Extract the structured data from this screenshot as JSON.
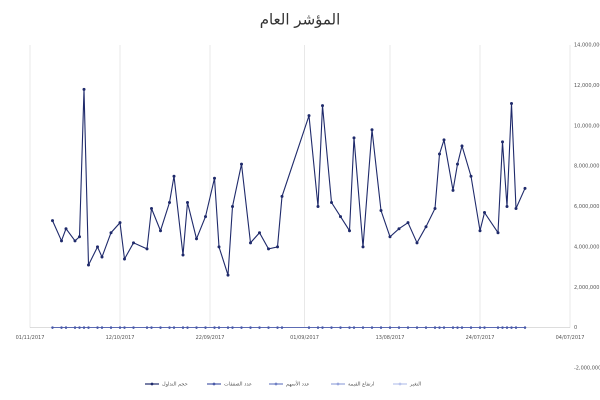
{
  "chart_data": {
    "type": "line",
    "title": "المؤشر العام",
    "x": [
      "2017-10-27",
      "2017-10-25",
      "2017-10-24",
      "2017-10-22",
      "2017-10-21",
      "2017-10-20",
      "2017-10-19",
      "2017-10-17",
      "2017-10-16",
      "2017-10-14",
      "2017-10-12",
      "2017-10-11",
      "2017-10-09",
      "2017-10-06",
      "2017-10-05",
      "2017-10-03",
      "2017-10-01",
      "2017-09-30",
      "2017-09-28",
      "2017-09-27",
      "2017-09-25",
      "2017-09-23",
      "2017-09-21",
      "2017-09-20",
      "2017-09-18",
      "2017-09-17",
      "2017-09-15",
      "2017-09-13",
      "2017-09-11",
      "2017-09-09",
      "2017-09-07",
      "2017-09-06",
      "2017-08-31",
      "2017-08-29",
      "2017-08-28",
      "2017-08-26",
      "2017-08-24",
      "2017-08-22",
      "2017-08-21",
      "2017-08-19",
      "2017-08-17",
      "2017-08-15",
      "2017-08-13",
      "2017-08-11",
      "2017-08-09",
      "2017-08-07",
      "2017-08-05",
      "2017-08-03",
      "2017-08-02",
      "2017-08-01",
      "2017-07-30",
      "2017-07-29",
      "2017-07-28",
      "2017-07-26",
      "2017-07-24",
      "2017-07-23",
      "2017-07-20",
      "2017-07-19",
      "2017-07-18",
      "2017-07-17",
      "2017-07-16",
      "2017-07-14"
    ],
    "series": [
      {
        "name": "حجم التداول",
        "color": "#1f2a6b",
        "values": [
          5300000,
          4300000,
          4900000,
          4300000,
          4500000,
          11800000,
          3100000,
          4000000,
          3500000,
          4700000,
          5200000,
          3400000,
          4200000,
          3900000,
          5900000,
          4800000,
          6200000,
          7500000,
          3600000,
          6200000,
          4400000,
          5500000,
          7400000,
          4000000,
          2600000,
          6000000,
          8100000,
          4200000,
          4700000,
          3900000,
          4000000,
          6500000,
          10500000,
          6000000,
          11000000,
          6200000,
          5500000,
          4800000,
          9400000,
          4000000,
          9800000,
          5800000,
          4500000,
          4900000,
          5200000,
          4200000,
          5000000,
          5900000,
          8600000,
          9300000,
          6800000,
          8100000,
          9000000,
          7500000,
          4800000,
          5700000,
          4700000,
          9200000,
          6000000,
          11100000,
          5900000,
          6900000
        ]
      },
      {
        "name": "عدد الصفقات",
        "color": "#4a5aa8",
        "values": [
          0,
          0,
          0,
          0,
          0,
          0,
          0,
          0,
          0,
          0,
          0,
          0,
          0,
          0,
          0,
          0,
          0,
          0,
          0,
          0,
          0,
          0,
          0,
          0,
          0,
          0,
          0,
          0,
          0,
          0,
          0,
          0,
          0,
          0,
          0,
          0,
          0,
          0,
          0,
          0,
          0,
          0,
          0,
          0,
          0,
          0,
          0,
          0,
          0,
          0,
          0,
          0,
          0,
          0,
          0,
          0,
          0,
          0,
          0,
          0,
          0,
          0
        ]
      },
      {
        "name": "عدد الأسهم",
        "color": "#7080c4",
        "values": [
          0,
          0,
          0,
          0,
          0,
          0,
          0,
          0,
          0,
          0,
          0,
          0,
          0,
          0,
          0,
          0,
          0,
          0,
          0,
          0,
          0,
          0,
          0,
          0,
          0,
          0,
          0,
          0,
          0,
          0,
          0,
          0,
          0,
          0,
          0,
          0,
          0,
          0,
          0,
          0,
          0,
          0,
          0,
          0,
          0,
          0,
          0,
          0,
          0,
          0,
          0,
          0,
          0,
          0,
          0,
          0,
          0,
          0,
          0,
          0,
          0,
          0
        ]
      },
      {
        "name": "ارتفاع القيمة",
        "color": "#98a6dc",
        "values": [
          0,
          0,
          0,
          0,
          0,
          0,
          0,
          0,
          0,
          0,
          0,
          0,
          0,
          0,
          0,
          0,
          0,
          0,
          0,
          0,
          0,
          0,
          0,
          0,
          0,
          0,
          0,
          0,
          0,
          0,
          0,
          0,
          0,
          0,
          0,
          0,
          0,
          0,
          0,
          0,
          0,
          0,
          0,
          0,
          0,
          0,
          0,
          0,
          0,
          0,
          0,
          0,
          0,
          0,
          0,
          0,
          0,
          0,
          0,
          0,
          0,
          0
        ]
      },
      {
        "name": "التغير",
        "color": "#b9c4ec",
        "values": [
          0,
          0,
          0,
          0,
          0,
          0,
          0,
          0,
          0,
          0,
          0,
          0,
          0,
          0,
          0,
          0,
          0,
          0,
          0,
          0,
          0,
          0,
          0,
          0,
          0,
          0,
          0,
          0,
          0,
          0,
          0,
          0,
          0,
          0,
          0,
          0,
          0,
          0,
          0,
          0,
          0,
          0,
          0,
          0,
          0,
          0,
          0,
          0,
          0,
          0,
          0,
          0,
          0,
          0,
          0,
          0,
          0,
          0,
          0,
          0,
          0,
          0
        ]
      }
    ],
    "xlim": [
      "2017-11-01",
      "2017-07-04"
    ],
    "xticks": [
      {
        "value": "2017-11-01",
        "label": "01/11/2017"
      },
      {
        "value": "2017-10-12",
        "label": "12/10/2017"
      },
      {
        "value": "2017-09-22",
        "label": "22/09/2017"
      },
      {
        "value": "2017-09-01",
        "label": "01/09/2017"
      },
      {
        "value": "2017-08-13",
        "label": "13/08/2017"
      },
      {
        "value": "2017-07-24",
        "label": "24/07/2017"
      },
      {
        "value": "2017-07-04",
        "label": "04/07/2017"
      }
    ],
    "ylim": [
      -2000000,
      14000000
    ],
    "yticks": [
      {
        "value": -2000000,
        "label": "-2,000,000"
      },
      0,
      {
        "value": 2000000,
        "label": "2,000,000"
      },
      {
        "value": 4000000,
        "label": "4,000,000"
      },
      {
        "value": 6000000,
        "label": "6,000,000"
      },
      {
        "value": 8000000,
        "label": "8,000,000"
      },
      {
        "value": 10000000,
        "label": "10,000,000"
      },
      {
        "value": 12000000,
        "label": "12,000,000"
      },
      {
        "value": 14000000,
        "label": "14,000,000"
      }
    ],
    "grid": "vertical",
    "yaxis_side": "right",
    "legend": "bottom"
  }
}
